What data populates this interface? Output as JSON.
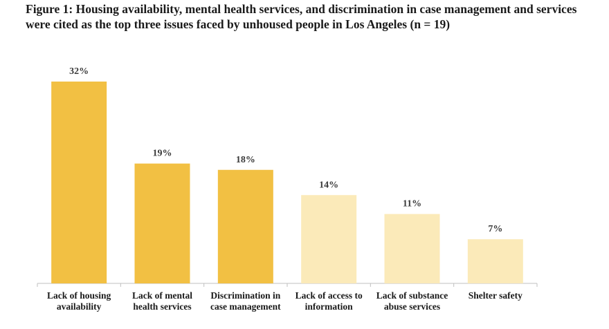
{
  "chart_data": {
    "type": "bar",
    "title": "Figure 1: Housing availability, mental health services, and discrimination in case management and services were cited as the top three issues faced by unhoused people in Los Angeles (n = 19)",
    "categories": [
      [
        "Lack of housing",
        "availability"
      ],
      [
        "Lack of mental",
        "health services"
      ],
      [
        "Discrimination in",
        "case management"
      ],
      [
        "Lack of access to",
        "information"
      ],
      [
        "Lack of substance",
        "abuse services"
      ],
      [
        "Shelter safety"
      ]
    ],
    "values": [
      32,
      19,
      18,
      14,
      11,
      7
    ],
    "value_labels": [
      "32%",
      "19%",
      "18%",
      "14%",
      "11%",
      "7%"
    ],
    "highlighted": [
      true,
      true,
      true,
      false,
      false,
      false
    ],
    "xlabel": "",
    "ylabel": "",
    "ylim": [
      0,
      32
    ],
    "grid": false,
    "colors": {
      "highlight": "#f2c043",
      "muted": "#fbeab9",
      "axis": "#bfbfbf"
    }
  }
}
